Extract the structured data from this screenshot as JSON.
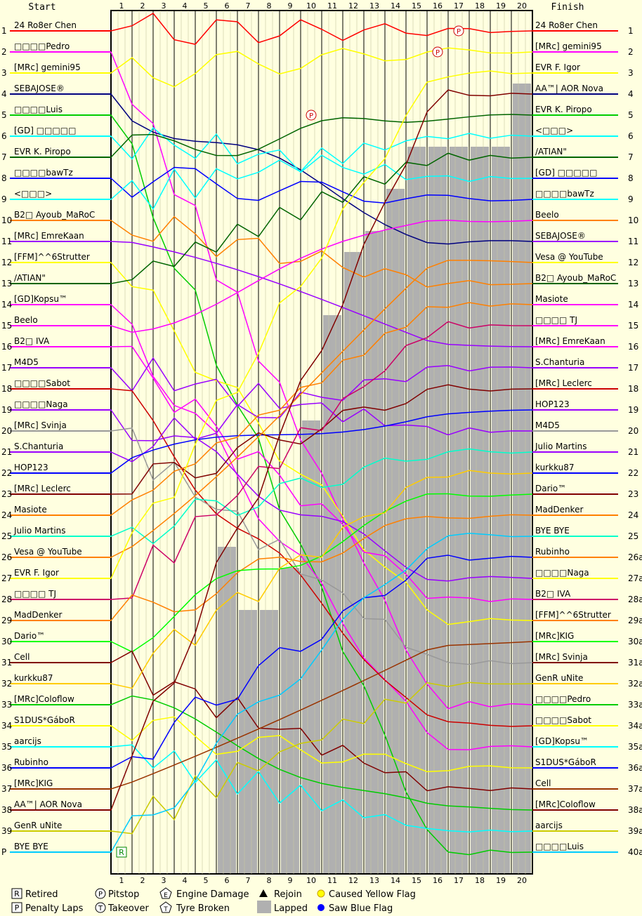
{
  "chart_data": {
    "type": "line",
    "title": "",
    "header": {
      "start": "Start",
      "finish": "Finish"
    },
    "laps": [
      "1",
      "2",
      "3",
      "4",
      "5",
      "6",
      "7",
      "8",
      "9",
      "10",
      "11",
      "12",
      "13",
      "14",
      "15",
      "16",
      "17",
      "18",
      "19",
      "20"
    ],
    "start_position_labels": [
      "1",
      "2",
      "3",
      "4",
      "5",
      "6",
      "7",
      "8",
      "9",
      "10",
      "11",
      "12",
      "13",
      "14",
      "15",
      "16",
      "17",
      "18",
      "19",
      "20",
      "21",
      "22",
      "23",
      "24",
      "25",
      "26",
      "27",
      "28",
      "29",
      "30",
      "31",
      "32",
      "33",
      "34",
      "35",
      "36",
      "37",
      "38",
      "39",
      "P"
    ],
    "finish_position_labels": [
      "1",
      "2",
      "3",
      "4",
      "5",
      "6",
      "7",
      "8",
      "9",
      "10",
      "11",
      "12",
      "13",
      "14",
      "15",
      "16",
      "17",
      "18",
      "19",
      "20",
      "21",
      "22",
      "23",
      "24",
      "25",
      "26a",
      "27a",
      "28a",
      "29a",
      "30a",
      "31a",
      "32a",
      "33a",
      "34a",
      "35a",
      "36a",
      "37a",
      "38a",
      "39a",
      "40a"
    ],
    "start_grid": [
      "24 Ro8er Chen",
      "□□□□Pedro",
      "[MRc] gemini95",
      "SEBAJOSE®",
      "□□□□Luis",
      "[GD] □□□□□",
      "EVR K. Piropo",
      "□□□□bawTz",
      "<□□□>",
      "B2□ Ayoub_MaRoC",
      "[MRc] EmreKaan",
      "[FFM]^^6Strutter",
      "/ATIAN\"",
      "[GD]Kopsu™",
      "Beelo",
      "B2□ IVA",
      "M4D5",
      "□□□□Sabot",
      "□□□□Naga",
      "[MRc] Svinja",
      "S.Chanturia",
      "HOP123",
      "[MRc] Leclerc",
      "Masiote",
      "Julio Martins",
      "Vesa @ YouTube",
      "EVR F. Igor",
      "□□□□ TJ",
      "MadDenker",
      "Dario™",
      "Cell",
      "kurkku87",
      "[MRc]Coloflow",
      "S1DUS*GáboR",
      "aarcijs",
      "Rubinho",
      "[MRc]KIG",
      "AA™| AOR Nova",
      "GenR uNite",
      "BYE BYE"
    ],
    "finish_order": [
      "24 Ro8er Chen",
      "[MRc] gemini95",
      "EVR F. Igor",
      "AA™| AOR Nova",
      "EVR K. Piropo",
      "<□□□>",
      "/ATIAN\"",
      "[GD] □□□□□",
      "□□□□bawTz",
      "Beelo",
      "SEBAJOSE®",
      "Vesa @ YouTube",
      "B2□ Ayoub_MaRoC",
      "Masiote",
      "□□□□ TJ",
      "[MRc] EmreKaan",
      "S.Chanturia",
      "[MRc] Leclerc",
      "HOP123",
      "M4D5",
      "Julio Martins",
      "kurkku87",
      "Dario™",
      "MadDenker",
      "BYE BYE",
      "Rubinho",
      "□□□□Naga",
      "B2□ IVA",
      "[FFM]^^6Strutter",
      "[MRc]KIG",
      "[MRc] Svinja",
      "GenR uNite",
      "□□□□Pedro",
      "□□□□Sabot",
      "[GD]Kopsu™",
      "S1DUS*GáboR",
      "Cell",
      "[MRc]Coloflow",
      "aarcijs",
      "□□□□Luis"
    ],
    "series_colors": [
      "#ff0000",
      "#ff00ff",
      "#ffff00",
      "#000080",
      "#00cc00",
      "#00ffff",
      "#006400",
      "#0000ff",
      "#00ffff",
      "#ff8000",
      "#9900ff",
      "#ffff00",
      "#006400",
      "#ff00ff",
      "#ff00ff",
      "#ff00ff",
      "#9900ff",
      "#cc0000",
      "#9900ff",
      "#999999",
      "#9900ff",
      "#0000ff",
      "#800000",
      "#ff8000",
      "#00ffcc",
      "#ff8000",
      "#ffff00",
      "#cc0066",
      "#ff8000",
      "#00ff00",
      "#800000",
      "#ffcc00",
      "#00cc00",
      "#ffff00",
      "#00ffff",
      "#0000ff",
      "#993300",
      "#800000",
      "#cccc00",
      "#00ccff"
    ],
    "events_sample": [
      {
        "driver": "24 Ro8er Chen",
        "lap": 17,
        "type": "pitstop"
      },
      {
        "driver": "[MRc] gemini95",
        "lap": 16,
        "type": "pitstop"
      },
      {
        "driver": "□□□□Luis",
        "lap": 1,
        "type": "retired"
      },
      {
        "driver": "EVR K. Piropo",
        "lap": 10,
        "type": "pitstop"
      }
    ],
    "lapped_levels": [
      0,
      0,
      0,
      0,
      0,
      25,
      28,
      28,
      26,
      19,
      14,
      11,
      10,
      8,
      6,
      6,
      6,
      6,
      6,
      3
    ],
    "legend": {
      "retired": "Retired",
      "penalty": "Penalty Laps",
      "pitstop": "Pitstop",
      "takeover": "Takeover",
      "engine": "Engine Damage",
      "tyre": "Tyre Broken",
      "rejoin": "Rejoin",
      "lapped": "Lapped",
      "yellow": "Caused Yellow Flag",
      "blue": "Saw Blue Flag"
    },
    "colors": {
      "background": "#ffffe0",
      "grid": "#000000",
      "lapped": "#b0b0b0",
      "yellow_flag": "#ffff00",
      "blue_flag": "#0000ff"
    }
  }
}
